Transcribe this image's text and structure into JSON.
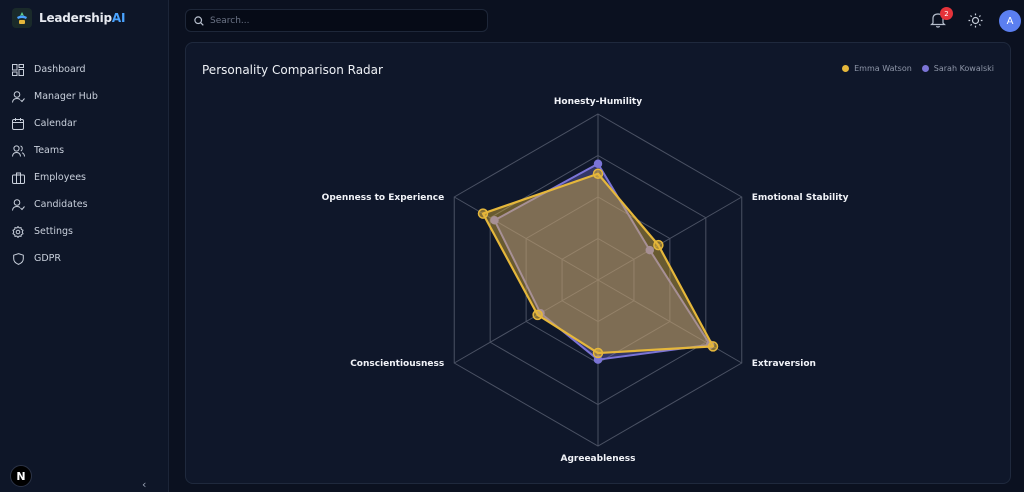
{
  "brand": {
    "name": "Leadership",
    "suffix": "AI"
  },
  "sidebar": {
    "items": [
      {
        "label": "Dashboard",
        "icon": "dashboard-icon"
      },
      {
        "label": "Manager Hub",
        "icon": "user-check-icon"
      },
      {
        "label": "Calendar",
        "icon": "calendar-icon"
      },
      {
        "label": "Teams",
        "icon": "users-icon"
      },
      {
        "label": "Employees",
        "icon": "briefcase-icon"
      },
      {
        "label": "Candidates",
        "icon": "user-check-icon"
      },
      {
        "label": "Settings",
        "icon": "gear-icon"
      },
      {
        "label": "GDPR",
        "icon": "shield-icon"
      }
    ],
    "footer_badge": "N",
    "collapse_glyph": "‹"
  },
  "header": {
    "search_placeholder": "Search...",
    "notification_count": "2",
    "avatar_initial": "A"
  },
  "card": {
    "title": "Personality Comparison Radar"
  },
  "colors": {
    "series1": "#e5b73b",
    "series2": "#7b74d6",
    "accent": "#4aa3ff"
  },
  "chart_data": {
    "type": "radar",
    "title": "Personality Comparison Radar",
    "axes": [
      "Honesty-Humility",
      "Emotional Stability",
      "Extraversion",
      "Agreeableness",
      "Conscientiousness",
      "Openness to Experience"
    ],
    "range": [
      0,
      5
    ],
    "series": [
      {
        "name": "Emma Watson",
        "color": "#e5b73b",
        "values": [
          3.2,
          2.1,
          4.0,
          2.2,
          2.1,
          4.0
        ]
      },
      {
        "name": "Sarah Kowalski",
        "color": "#7b74d6",
        "values": [
          3.5,
          1.8,
          3.9,
          2.4,
          2.0,
          3.6
        ]
      }
    ],
    "legend": "top-right",
    "grid": true
  }
}
